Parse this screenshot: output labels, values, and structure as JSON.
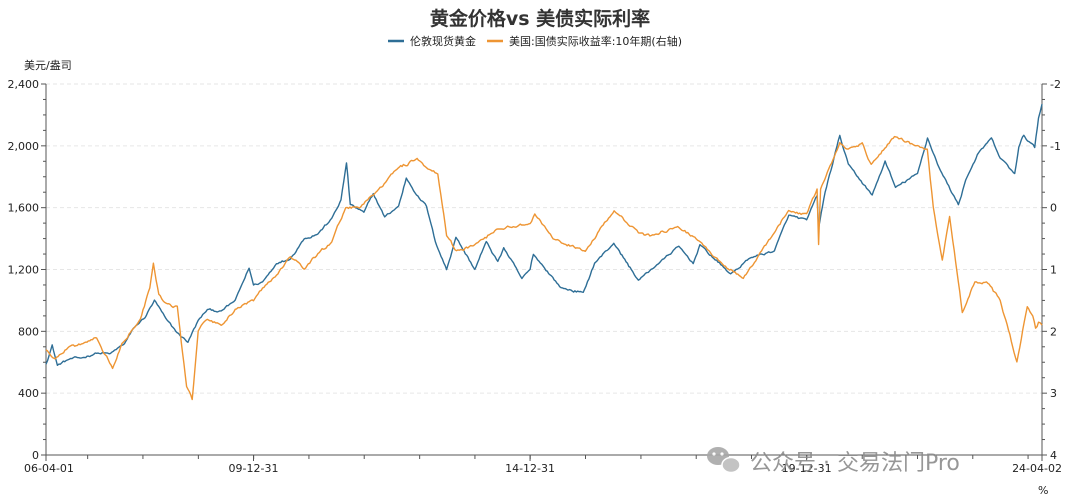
{
  "chart_data": {
    "type": "line",
    "title": "黄金价格vs 美债实际利率",
    "left_axis": {
      "unit_label": "美元/盎司",
      "ticks": [
        "0",
        "400",
        "800",
        "1,200",
        "1,600",
        "2,000",
        "2,400"
      ],
      "min": 0,
      "max": 2400
    },
    "right_axis": {
      "unit_label": "%",
      "ticks": [
        "-2",
        "-1",
        "0",
        "1",
        "2",
        "3",
        "4"
      ],
      "min": -2,
      "max": 4,
      "inverted": true
    },
    "x_axis": {
      "ticks": [
        "06-04-01",
        "09-12-31",
        "14-12-31",
        "19-12-31",
        "24-04-02"
      ],
      "start": "2006-04-01",
      "end": "2024-04-02"
    },
    "grid": true,
    "legend_position": "top-center",
    "colors": {
      "gold": "#2e6e96",
      "real_rate": "#ee9533"
    },
    "series": [
      {
        "name": "伦敦现货黄金",
        "axis": "left",
        "color": "#2e6e96",
        "points": [
          [
            "2006-04-01",
            590
          ],
          [
            "2006-05-12",
            710
          ],
          [
            "2006-06-15",
            580
          ],
          [
            "2006-09-01",
            620
          ],
          [
            "2006-12-01",
            630
          ],
          [
            "2007-03-01",
            660
          ],
          [
            "2007-06-01",
            655
          ],
          [
            "2007-09-01",
            720
          ],
          [
            "2007-11-08",
            830
          ],
          [
            "2008-01-15",
            890
          ],
          [
            "2008-03-17",
            1000
          ],
          [
            "2008-06-01",
            880
          ],
          [
            "2008-08-15",
            790
          ],
          [
            "2008-10-24",
            730
          ],
          [
            "2008-12-31",
            870
          ],
          [
            "2009-03-01",
            940
          ],
          [
            "2009-06-01",
            930
          ],
          [
            "2009-09-01",
            1000
          ],
          [
            "2009-12-02",
            1210
          ],
          [
            "2009-12-31",
            1100
          ],
          [
            "2010-03-01",
            1120
          ],
          [
            "2010-06-01",
            1240
          ],
          [
            "2010-09-01",
            1270
          ],
          [
            "2010-12-01",
            1400
          ],
          [
            "2011-03-01",
            1430
          ],
          [
            "2011-06-01",
            1530
          ],
          [
            "2011-08-01",
            1650
          ],
          [
            "2011-09-06",
            1890
          ],
          [
            "2011-10-01",
            1620
          ],
          [
            "2011-12-30",
            1570
          ],
          [
            "2012-03-01",
            1690
          ],
          [
            "2012-05-15",
            1540
          ],
          [
            "2012-08-15",
            1610
          ],
          [
            "2012-10-05",
            1790
          ],
          [
            "2012-12-31",
            1660
          ],
          [
            "2013-02-15",
            1610
          ],
          [
            "2013-04-15",
            1380
          ],
          [
            "2013-06-28",
            1200
          ],
          [
            "2013-08-28",
            1410
          ],
          [
            "2013-12-31",
            1200
          ],
          [
            "2014-03-17",
            1380
          ],
          [
            "2014-06-01",
            1250
          ],
          [
            "2014-07-10",
            1340
          ],
          [
            "2014-11-07",
            1140
          ],
          [
            "2014-12-31",
            1200
          ],
          [
            "2015-01-22",
            1300
          ],
          [
            "2015-07-24",
            1080
          ],
          [
            "2015-12-17",
            1050
          ],
          [
            "2016-03-01",
            1240
          ],
          [
            "2016-07-06",
            1370
          ],
          [
            "2016-12-15",
            1130
          ],
          [
            "2017-06-01",
            1270
          ],
          [
            "2017-09-08",
            1350
          ],
          [
            "2017-12-12",
            1240
          ],
          [
            "2018-01-25",
            1360
          ],
          [
            "2018-08-16",
            1170
          ],
          [
            "2018-12-31",
            1280
          ],
          [
            "2019-06-01",
            1320
          ],
          [
            "2019-09-04",
            1550
          ],
          [
            "2019-12-31",
            1520
          ],
          [
            "2020-03-09",
            1680
          ],
          [
            "2020-03-19",
            1470
          ],
          [
            "2020-05-01",
            1700
          ],
          [
            "2020-08-06",
            2067
          ],
          [
            "2020-10-01",
            1880
          ],
          [
            "2021-03-08",
            1680
          ],
          [
            "2021-06-01",
            1900
          ],
          [
            "2021-08-09",
            1730
          ],
          [
            "2022-01-01",
            1820
          ],
          [
            "2022-03-08",
            2050
          ],
          [
            "2022-06-01",
            1840
          ],
          [
            "2022-09-28",
            1620
          ],
          [
            "2022-11-15",
            1780
          ],
          [
            "2023-01-31",
            1940
          ],
          [
            "2023-05-04",
            2050
          ],
          [
            "2023-07-01",
            1920
          ],
          [
            "2023-10-05",
            1820
          ],
          [
            "2023-11-01",
            1990
          ],
          [
            "2023-12-04",
            2070
          ],
          [
            "2024-01-15",
            2020
          ],
          [
            "2024-02-14",
            1990
          ],
          [
            "2024-03-10",
            2180
          ],
          [
            "2024-04-02",
            2270
          ]
        ]
      },
      {
        "name": "美国:国债实际收益率:10年期(右轴)",
        "axis": "right",
        "color": "#ee9533",
        "points": [
          [
            "2006-04-01",
            2.3
          ],
          [
            "2006-06-01",
            2.45
          ],
          [
            "2006-09-01",
            2.25
          ],
          [
            "2006-12-01",
            2.2
          ],
          [
            "2007-03-01",
            2.1
          ],
          [
            "2007-06-15",
            2.6
          ],
          [
            "2007-08-15",
            2.2
          ],
          [
            "2007-12-15",
            1.8
          ],
          [
            "2008-02-15",
            1.3
          ],
          [
            "2008-03-10",
            0.9
          ],
          [
            "2008-04-15",
            1.4
          ],
          [
            "2008-06-01",
            1.55
          ],
          [
            "2008-08-15",
            1.6
          ],
          [
            "2008-10-15",
            2.9
          ],
          [
            "2008-11-21",
            3.1
          ],
          [
            "2008-12-31",
            2.0
          ],
          [
            "2009-03-01",
            1.8
          ],
          [
            "2009-06-01",
            1.9
          ],
          [
            "2009-09-01",
            1.65
          ],
          [
            "2009-12-31",
            1.5
          ],
          [
            "2010-03-01",
            1.3
          ],
          [
            "2010-06-01",
            1.1
          ],
          [
            "2010-09-01",
            0.8
          ],
          [
            "2010-12-01",
            1.0
          ],
          [
            "2011-03-01",
            0.75
          ],
          [
            "2011-06-01",
            0.55
          ],
          [
            "2011-09-01",
            -0.0
          ],
          [
            "2011-12-01",
            0.0
          ],
          [
            "2012-03-01",
            -0.2
          ],
          [
            "2012-07-24",
            -0.6
          ],
          [
            "2012-12-15",
            -0.8
          ],
          [
            "2013-02-15",
            -0.65
          ],
          [
            "2013-05-01",
            -0.55
          ],
          [
            "2013-06-28",
            0.45
          ],
          [
            "2013-09-01",
            0.7
          ],
          [
            "2014-01-01",
            0.6
          ],
          [
            "2014-06-01",
            0.35
          ],
          [
            "2014-12-31",
            0.25
          ],
          [
            "2015-01-31",
            0.1
          ],
          [
            "2015-06-01",
            0.5
          ],
          [
            "2015-12-31",
            0.7
          ],
          [
            "2016-07-08",
            0.05
          ],
          [
            "2016-12-15",
            0.4
          ],
          [
            "2017-03-01",
            0.45
          ],
          [
            "2017-09-01",
            0.3
          ],
          [
            "2018-01-01",
            0.5
          ],
          [
            "2018-05-01",
            0.8
          ],
          [
            "2018-11-08",
            1.15
          ],
          [
            "2019-01-01",
            0.95
          ],
          [
            "2019-06-01",
            0.4
          ],
          [
            "2019-09-03",
            0.05
          ],
          [
            "2019-12-31",
            0.1
          ],
          [
            "2020-03-09",
            -0.3
          ],
          [
            "2020-03-19",
            0.6
          ],
          [
            "2020-04-01",
            -0.3
          ],
          [
            "2020-08-06",
            -1.05
          ],
          [
            "2020-10-01",
            -0.95
          ],
          [
            "2021-01-01",
            -1.05
          ],
          [
            "2021-03-01",
            -0.7
          ],
          [
            "2021-08-02",
            -1.15
          ],
          [
            "2021-12-31",
            -1.0
          ],
          [
            "2022-03-07",
            -0.95
          ],
          [
            "2022-04-15",
            0.0
          ],
          [
            "2022-06-14",
            0.85
          ],
          [
            "2022-08-01",
            0.15
          ],
          [
            "2022-09-01",
            0.7
          ],
          [
            "2022-10-24",
            1.7
          ],
          [
            "2023-01-15",
            1.2
          ],
          [
            "2023-04-01",
            1.2
          ],
          [
            "2023-07-01",
            1.5
          ],
          [
            "2023-10-19",
            2.5
          ],
          [
            "2023-12-27",
            1.6
          ],
          [
            "2024-02-01",
            1.75
          ],
          [
            "2024-02-20",
            1.95
          ],
          [
            "2024-03-10",
            1.85
          ],
          [
            "2024-04-02",
            1.9
          ]
        ]
      }
    ]
  },
  "watermark": {
    "icon": "wechat-icon",
    "text": "公众号 · 交易法门Pro"
  }
}
